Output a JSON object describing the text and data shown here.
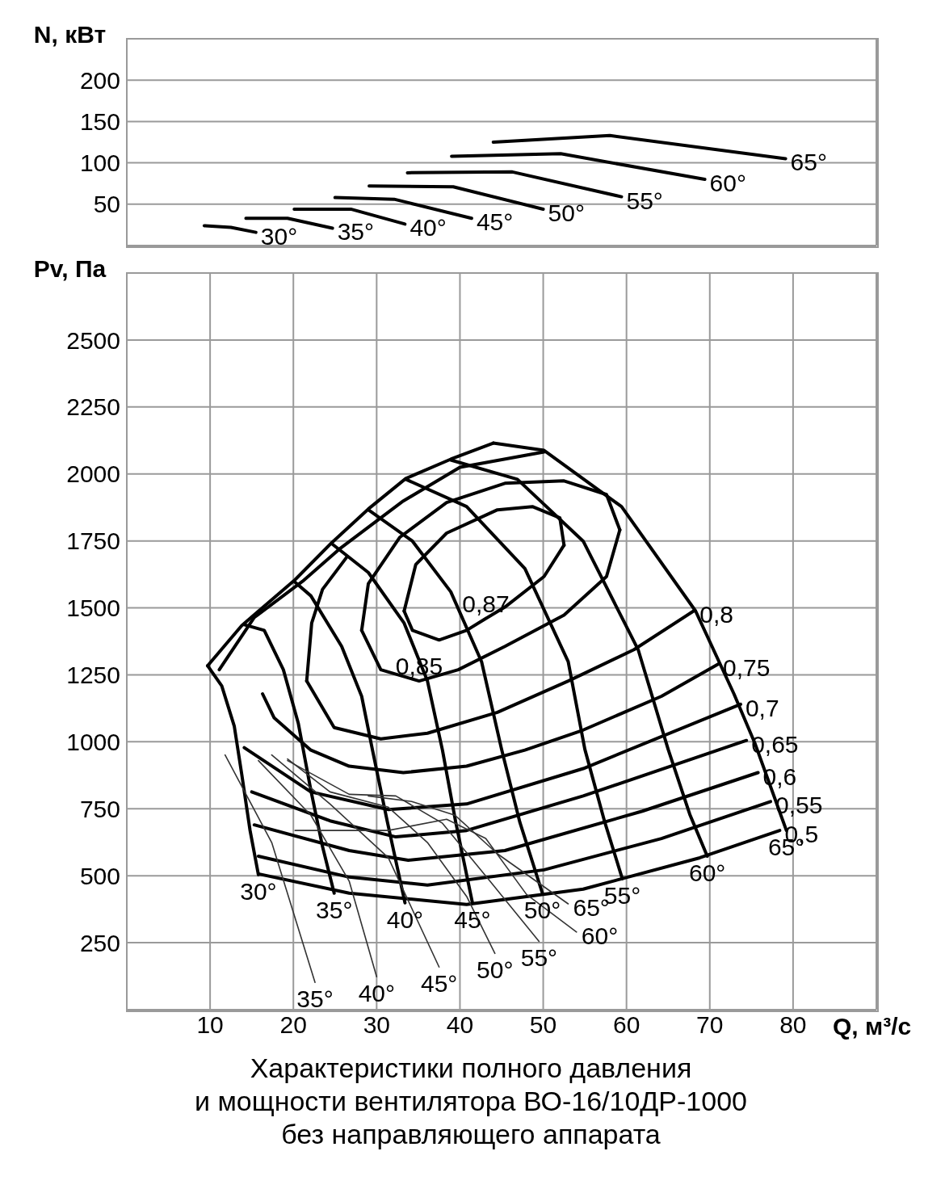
{
  "chart_data": [
    {
      "type": "line",
      "ylabel": "N, кВт",
      "xlim": [
        0,
        90
      ],
      "xticks": [
        10,
        20,
        30,
        40,
        50,
        60,
        70,
        80
      ],
      "ylim": [
        0,
        250
      ],
      "yticks": [
        50,
        100,
        150,
        200
      ],
      "grid": true,
      "tick_labels": "y",
      "marker": "none",
      "series": [
        {
          "color": "#000000",
          "x": [
            9.3,
            12.5,
            15.5
          ],
          "values": [
            24,
            22,
            16
          ]
        },
        {
          "color": "#000000",
          "x": [
            14.3,
            19.3,
            24.7
          ],
          "values": [
            33,
            33,
            21
          ]
        },
        {
          "color": "#000000",
          "x": [
            20.1,
            26.9,
            33.4
          ],
          "values": [
            44,
            44,
            26
          ]
        },
        {
          "color": "#000000",
          "x": [
            25,
            32.1,
            41.4
          ],
          "values": [
            58,
            56,
            33
          ]
        },
        {
          "color": "#000000",
          "x": [
            29.1,
            39.2,
            50
          ],
          "values": [
            72,
            71,
            44
          ]
        },
        {
          "color": "#000000",
          "x": [
            33.7,
            46.3,
            59.4
          ],
          "values": [
            88,
            89,
            59
          ]
        },
        {
          "color": "#000000",
          "x": [
            39,
            52.1,
            69.4
          ],
          "values": [
            108,
            111,
            80
          ]
        },
        {
          "color": "#000000",
          "x": [
            44,
            58,
            79.1
          ],
          "values": [
            125,
            133,
            105
          ]
        }
      ],
      "annotations": [
        {
          "text": "30°",
          "x": 15.5,
          "y": 16
        },
        {
          "text": "35°",
          "x": 24.7,
          "y": 21
        },
        {
          "text": "40°",
          "x": 33.4,
          "y": 26
        },
        {
          "text": "45°",
          "x": 41.4,
          "y": 33
        },
        {
          "text": "50°",
          "x": 50,
          "y": 44
        },
        {
          "text": "55°",
          "x": 59.4,
          "y": 59
        },
        {
          "text": "60°",
          "x": 69.4,
          "y": 80
        },
        {
          "text": "65°",
          "x": 79.1,
          "y": 105
        }
      ]
    },
    {
      "type": "line",
      "title": "Характеристики полного давления\nи мощности вентилятора ВО-16/10ДР-1000\nбез направляющего аппарата",
      "xlabel": "Q, м³/с",
      "ylabel": "Pv, Па",
      "xlim": [
        0,
        90
      ],
      "xticks": [
        10,
        20,
        30,
        40,
        50,
        60,
        70,
        80
      ],
      "ylim": [
        0,
        2750
      ],
      "yticks": [
        250,
        500,
        750,
        1000,
        1250,
        1500,
        1750,
        2000,
        2250,
        2500
      ],
      "grid": true,
      "marker": "none",
      "series": [
        {
          "color": "#000000",
          "x": [
            9.7,
            13.8,
            20.2,
            24.6,
            29.0,
            33.5,
            38.9,
            44.0
          ],
          "values": [
            1284,
            1434,
            1605,
            1743,
            1869,
            1983,
            2055,
            2115
          ]
        },
        {
          "color": "#000000",
          "x": [
            11.1,
            15.3,
            21.1,
            25.5,
            33.2,
            40.0,
            50.1
          ],
          "values": [
            1269,
            1464,
            1599,
            1719,
            1899,
            2025,
            2082
          ]
        },
        {
          "color": "#000000",
          "x": [
            9.7,
            11.4,
            12.9,
            13.8,
            14.8,
            15.8
          ],
          "values": [
            1284,
            1209,
            1059,
            879,
            669,
            504
          ]
        },
        {
          "color": "#000000",
          "x": [
            14.1,
            16.5,
            18.8,
            20.6,
            22.1,
            23.5,
            24.9
          ],
          "values": [
            1437,
            1416,
            1269,
            1068,
            819,
            609,
            435
          ]
        },
        {
          "color": "#000000",
          "x": [
            20.2,
            22.1,
            25.8,
            28.2,
            29.5,
            31.3,
            33.4
          ],
          "values": [
            1596,
            1545,
            1356,
            1170,
            969,
            699,
            399
          ]
        },
        {
          "color": "#000000",
          "x": [
            24.6,
            29.0,
            33.3,
            36.1,
            37.9,
            39.5,
            41.5
          ],
          "values": [
            1740,
            1632,
            1443,
            1227,
            969,
            699,
            399
          ]
        },
        {
          "color": "#000000",
          "x": [
            29.0,
            34.3,
            38.9,
            42.6,
            45.0,
            47.2,
            49.9
          ],
          "values": [
            1866,
            1749,
            1560,
            1299,
            972,
            699,
            435
          ]
        },
        {
          "color": "#000000",
          "x": [
            33.5,
            40.8,
            47.8,
            53.0,
            55.0,
            57.4,
            59.5
          ],
          "values": [
            1980,
            1878,
            1647,
            1299,
            972,
            699,
            489
          ]
        },
        {
          "color": "#000000",
          "x": [
            38.9,
            46.9,
            54.8,
            61.4,
            65.0,
            67.6,
            69.7
          ],
          "values": [
            2052,
            1980,
            1749,
            1344,
            972,
            729,
            573
          ]
        },
        {
          "color": "#000000",
          "x": [
            44.0,
            50.1,
            59.4,
            68.3,
            72.9,
            75.4,
            79.2
          ],
          "values": [
            2115,
            2088,
            1878,
            1488,
            1179,
            996,
            669
          ]
        },
        {
          "color": "#000000",
          "x": [
            33.3,
            34.7,
            38.4,
            44.5,
            48.7,
            52.0,
            52.5
          ],
          "values": [
            1488,
            1662,
            1779,
            1866,
            1878,
            1836,
            1734
          ]
        },
        {
          "color": "#000000",
          "x": [
            33.3,
            34.3,
            37.5,
            40.8,
            43.1,
            45.4,
            50.1,
            52.5
          ],
          "values": [
            1488,
            1416,
            1380,
            1416,
            1460,
            1503,
            1617,
            1734
          ]
        },
        {
          "color": "#000000",
          "x": [
            28.2,
            29.0,
            32.8,
            38.4,
            45.4,
            52.5,
            57.6,
            59.2
          ],
          "values": [
            1416,
            1590,
            1764,
            1893,
            1965,
            1974,
            1923,
            1791
          ]
        },
        {
          "color": "#000000",
          "x": [
            28.2,
            30.5,
            35.1,
            39.8,
            45.4,
            52.5,
            57.6,
            59.2
          ],
          "values": [
            1416,
            1269,
            1227,
            1269,
            1356,
            1473,
            1617,
            1791
          ]
        },
        {
          "color": "#000000",
          "x": [
            21.6,
            24.9,
            30.5,
            36.1,
            44.5,
            53.0,
            60.9,
            68.2
          ],
          "values": [
            1227,
            1053,
            1011,
            1032,
            1110,
            1227,
            1344,
            1491
          ]
        },
        {
          "color": "#000000",
          "x": [
            21.6,
            22.2,
            23.5,
            26.4
          ],
          "values": [
            1227,
            1443,
            1569,
            1689
          ]
        },
        {
          "color": "#000000",
          "x": [
            16.3,
            17.7,
            22.1,
            26.7,
            33.2,
            40.8,
            47.8,
            54.8,
            64.2,
            71.0
          ],
          "values": [
            1179,
            1089,
            969,
            909,
            885,
            909,
            969,
            1044,
            1170,
            1290
          ]
        },
        {
          "color": "#000000",
          "x": [
            14.1,
            22.1,
            31.4,
            40.8,
            54.8,
            73.7
          ],
          "values": [
            978,
            813,
            747,
            768,
            900,
            1140
          ]
        },
        {
          "color": "#000000",
          "x": [
            15.0,
            24.4,
            32.3,
            40.8,
            54.8,
            74.4
          ],
          "values": [
            813,
            705,
            645,
            669,
            798,
            1005
          ]
        },
        {
          "color": "#000000",
          "x": [
            15.3,
            26.7,
            33.8,
            45.4,
            61.9,
            75.8
          ],
          "values": [
            690,
            594,
            558,
            594,
            741,
            885
          ]
        },
        {
          "color": "#000000",
          "x": [
            15.8,
            26.7,
            36.1,
            50.1,
            64.2,
            77.3
          ],
          "values": [
            573,
            495,
            465,
            522,
            639,
            777
          ]
        },
        {
          "color": "#000000",
          "x": [
            15.8,
            26.7,
            40.8,
            54.8,
            68.8,
            78.4
          ],
          "values": [
            507,
            435,
            393,
            450,
            567,
            669
          ]
        },
        {
          "color": "#333333",
          "x": [
            11.8,
            17.4,
            22.6
          ],
          "values": [
            951,
            624,
            102
          ]
        },
        {
          "color": "#333333",
          "x": [
            15.8,
            22.1,
            26.7,
            30.0
          ],
          "values": [
            930,
            726,
            480,
            123
          ]
        },
        {
          "color": "#333333",
          "x": [
            17.4,
            24.4,
            31.4,
            37.5
          ],
          "values": [
            951,
            768,
            567,
            159
          ]
        },
        {
          "color": "#333333",
          "x": [
            19.3,
            24.4,
            31.4,
            36.1,
            40.8,
            44.2
          ],
          "values": [
            936,
            813,
            756,
            624,
            423,
            210
          ]
        },
        {
          "color": "#333333",
          "x": [
            19.3,
            26.7,
            32.3,
            37.9,
            43.6,
            49.5
          ],
          "values": [
            930,
            804,
            798,
            696,
            480,
            255
          ]
        },
        {
          "color": "#333333",
          "x": [
            20.2,
            31.4,
            38.4,
            43.1,
            48.0,
            54.0
          ],
          "values": [
            669,
            669,
            711,
            639,
            430,
            290
          ]
        },
        {
          "color": "#333333",
          "x": [
            29.0,
            34.2,
            39.4,
            44.5,
            53.0
          ],
          "values": [
            798,
            777,
            726,
            582,
            395
          ]
        }
      ],
      "annotations": [
        {
          "text": "0,87",
          "x": 43.1,
          "y": 1460
        },
        {
          "text": "0,85",
          "x": 35.1,
          "y": 1227
        },
        {
          "text": "0,8",
          "x": 68.2,
          "y": 1491
        },
        {
          "text": "0,75",
          "x": 71.0,
          "y": 1290
        },
        {
          "text": "0,7",
          "x": 73.7,
          "y": 1140
        },
        {
          "text": "0,65",
          "x": 74.4,
          "y": 1005
        },
        {
          "text": "0,6",
          "x": 75.8,
          "y": 885
        },
        {
          "text": "0,55",
          "x": 77.3,
          "y": 777
        },
        {
          "text": "0,5",
          "x": 78.4,
          "y": 669
        },
        {
          "text": "30°",
          "x": 15.8,
          "y": 504
        },
        {
          "text": "35°",
          "x": 24.9,
          "y": 435
        },
        {
          "text": "40°",
          "x": 33.4,
          "y": 399
        },
        {
          "text": "45°",
          "x": 41.5,
          "y": 399
        },
        {
          "text": "50°",
          "x": 49.9,
          "y": 435
        },
        {
          "text": "55°",
          "x": 59.5,
          "y": 489
        },
        {
          "text": "60°",
          "x": 69.7,
          "y": 573
        },
        {
          "text": "65°",
          "x": 79.2,
          "y": 669
        },
        {
          "text": "35°",
          "x": 22.6,
          "y": 102
        },
        {
          "text": "40°",
          "x": 30.0,
          "y": 123
        },
        {
          "text": "45°",
          "x": 37.5,
          "y": 159
        },
        {
          "text": "50°",
          "x": 44.2,
          "y": 210
        },
        {
          "text": "55°",
          "x": 49.5,
          "y": 255
        },
        {
          "text": "60°",
          "x": 54.0,
          "y": 290
        },
        {
          "text": "65°",
          "x": 53.0,
          "y": 395
        }
      ]
    }
  ]
}
